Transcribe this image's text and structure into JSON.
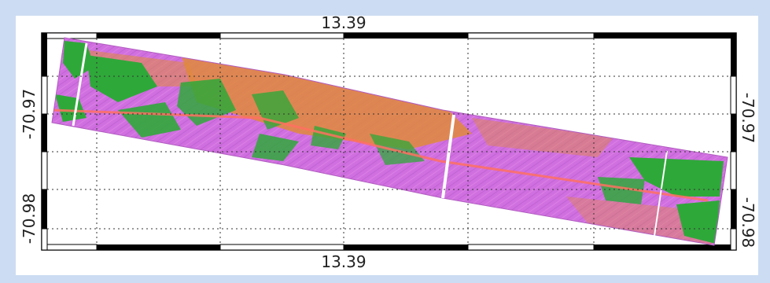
{
  "map": {
    "top_axis_label": "13.39",
    "bottom_axis_label": "13.39",
    "left_axis_labels": [
      "-70.97",
      "-70.98"
    ],
    "right_axis_labels": [
      "-70.97",
      "-70.98"
    ],
    "colors": {
      "background": "#ccdcf2",
      "panel": "#ffffff",
      "frame": "#000000",
      "swath_magenta": "#d070e0",
      "swath_orange": "#e08a3a",
      "swath_green": "#2fa83a",
      "swath_salmon": "#ff7060",
      "grid": "#333333"
    }
  }
}
